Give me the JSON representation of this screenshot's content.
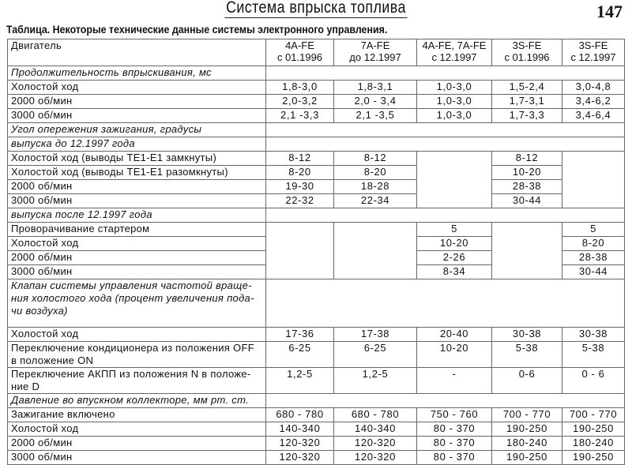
{
  "page": {
    "title": "Система впрыска топлива",
    "number": "147"
  },
  "caption": "Таблица. Некоторые технические данные системы электронного управления.",
  "header": {
    "label": "Двигатель",
    "cols": [
      "4A-FE\nс 01.1996",
      "7A-FE\nдо 12.1997",
      "4A-FE, 7A-FE\nс 12.1997",
      "3S-FE\nс 01.1996",
      "3S-FE\nс 12.1997"
    ]
  },
  "rows": [
    {
      "label": "Продолжительность впрыскивания, мс"
    },
    {
      "label": "Холостой ход",
      "values": [
        "1,8-3,0",
        "1,8-3,1",
        "1,0-3,0",
        "1,5-2,4",
        "3,0-4,8"
      ]
    },
    {
      "label": "2000 об/мин",
      "values": [
        "2,0-3,2",
        "2,0 - 3,4",
        "1,0-3,0",
        "1,7-3,1",
        "3,4-6,2"
      ]
    },
    {
      "label": "3000 об/мин",
      "values": [
        "2,1 -3,3",
        "2,1 -3,5",
        "1,0-3,0",
        "1,7-3,3",
        "3,4-6,4"
      ]
    },
    {
      "label": "Угол опережения зажигания, градусы"
    },
    {
      "label": "выпуска до 12.1997 года"
    },
    {
      "label": "Холостой ход (выводы TE1-E1 замкнуты)",
      "values": [
        "8-12",
        "8-12",
        "",
        "8-12",
        ""
      ]
    },
    {
      "label": "Холостой ход (выводы TE1-E1 разомкнуты)",
      "values": [
        "8-20",
        "8-20",
        "",
        "10-20",
        ""
      ]
    },
    {
      "label": "2000 об/мин",
      "values": [
        "19-30",
        "18-28",
        "",
        "28-38",
        ""
      ]
    },
    {
      "label": "3000 об/мин",
      "values": [
        "22-32",
        "22-34",
        "",
        "30-44",
        ""
      ]
    },
    {
      "label": "выпуска после 12.1997 года"
    },
    {
      "label": "Проворачивание стартером",
      "values": [
        "",
        "",
        "5",
        "",
        "5"
      ]
    },
    {
      "label": "Холостой ход",
      "values": [
        "",
        "",
        "10-20",
        "",
        "8-20"
      ]
    },
    {
      "label": "2000 об/мин",
      "values": [
        "",
        "",
        "2-26",
        "",
        "28-38"
      ]
    },
    {
      "label": "3000 об/мин",
      "values": [
        "",
        "",
        "8-34",
        "",
        "30-44"
      ]
    },
    {
      "label": "Клапан системы управления частотой враще-\nния холостого хода (процент увеличения пода-\nчи воздуха)"
    },
    {
      "label": "Холостой ход",
      "values": [
        "17-36",
        "17-38",
        "20-40",
        "30-38",
        "30-38"
      ]
    },
    {
      "label": "Переключение кондиционера из положения OFF\nв положение ON",
      "values": [
        "6-25",
        "6-25",
        "10-20",
        "5-38",
        "5-38"
      ]
    },
    {
      "label": "Переключение АКПП из положения N в положе-\nние D",
      "values": [
        "1,2-5",
        "1,2-5",
        "-",
        "0-6",
        "0 - 6"
      ]
    },
    {
      "label": "Давление во впускном коллекторе, мм рт. ст."
    },
    {
      "label": "Зажигание включено",
      "values": [
        "680 - 780",
        "680 - 780",
        "750 - 760",
        "700 - 770",
        "700 - 770"
      ]
    },
    {
      "label": "Холостой ход",
      "values": [
        "140-340",
        "140-340",
        "80 - 370",
        "190-250",
        "190-250"
      ]
    },
    {
      "label": "2000 об/мин",
      "values": [
        "120-320",
        "120-320",
        "80 - 370",
        "180-240",
        "180-240"
      ]
    },
    {
      "label": "3000 об/мин",
      "values": [
        "120-320",
        "120-320",
        "80 - 370",
        "190-250",
        "190-250"
      ]
    }
  ]
}
